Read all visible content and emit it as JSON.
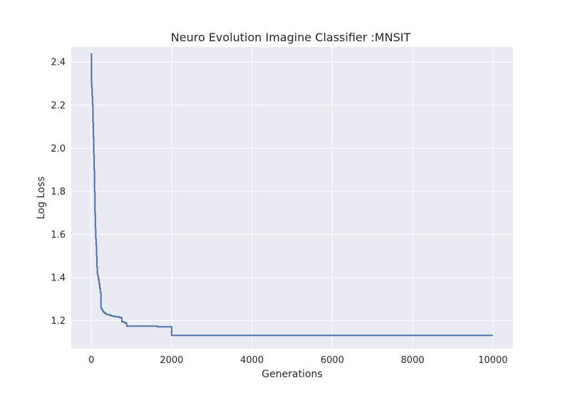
{
  "chart_data": {
    "type": "line",
    "title": "Neuro Evolution Imagine  Classifier :MNSIT",
    "xlabel": "Generations",
    "ylabel": "Log Loss",
    "xlim": [
      -500,
      10500
    ],
    "ylim": [
      1.07,
      2.47
    ],
    "x_ticks": [
      0,
      2000,
      4000,
      6000,
      8000,
      10000
    ],
    "y_ticks": [
      1.2,
      1.4,
      1.6,
      1.8,
      2.0,
      2.2,
      2.4
    ],
    "x_tick_labels": [
      "0",
      "2000",
      "4000",
      "6000",
      "8000",
      "10000"
    ],
    "y_tick_labels": [
      "1.2",
      "1.4",
      "1.6",
      "1.8",
      "2.0",
      "2.2",
      "2.4"
    ],
    "grid": true,
    "legend": "none",
    "colors": {
      "line": "#4c72b0",
      "background": "#eaeaf2",
      "grid": "#ffffff"
    },
    "series": [
      {
        "step": true,
        "x": [
          0,
          5,
          10,
          20,
          30,
          40,
          50,
          60,
          70,
          80,
          90,
          100,
          110,
          120,
          130,
          140,
          150,
          160,
          170,
          180,
          195,
          210,
          225,
          240,
          255,
          270,
          285,
          300,
          330,
          360,
          400,
          450,
          500,
          560,
          620,
          700,
          760,
          820,
          880,
          1000,
          1400,
          1650,
          2000,
          3000,
          5000,
          7000,
          9000,
          10000
        ],
        "y": [
          2.44,
          2.3,
          2.28,
          2.24,
          2.2,
          2.12,
          2.05,
          1.97,
          1.9,
          1.8,
          1.7,
          1.63,
          1.58,
          1.55,
          1.5,
          1.45,
          1.42,
          1.41,
          1.4,
          1.39,
          1.37,
          1.35,
          1.33,
          1.26,
          1.255,
          1.25,
          1.245,
          1.24,
          1.235,
          1.23,
          1.228,
          1.225,
          1.222,
          1.22,
          1.218,
          1.215,
          1.195,
          1.19,
          1.175,
          1.175,
          1.175,
          1.172,
          1.132,
          1.132,
          1.132,
          1.132,
          1.132,
          1.132
        ]
      }
    ]
  }
}
